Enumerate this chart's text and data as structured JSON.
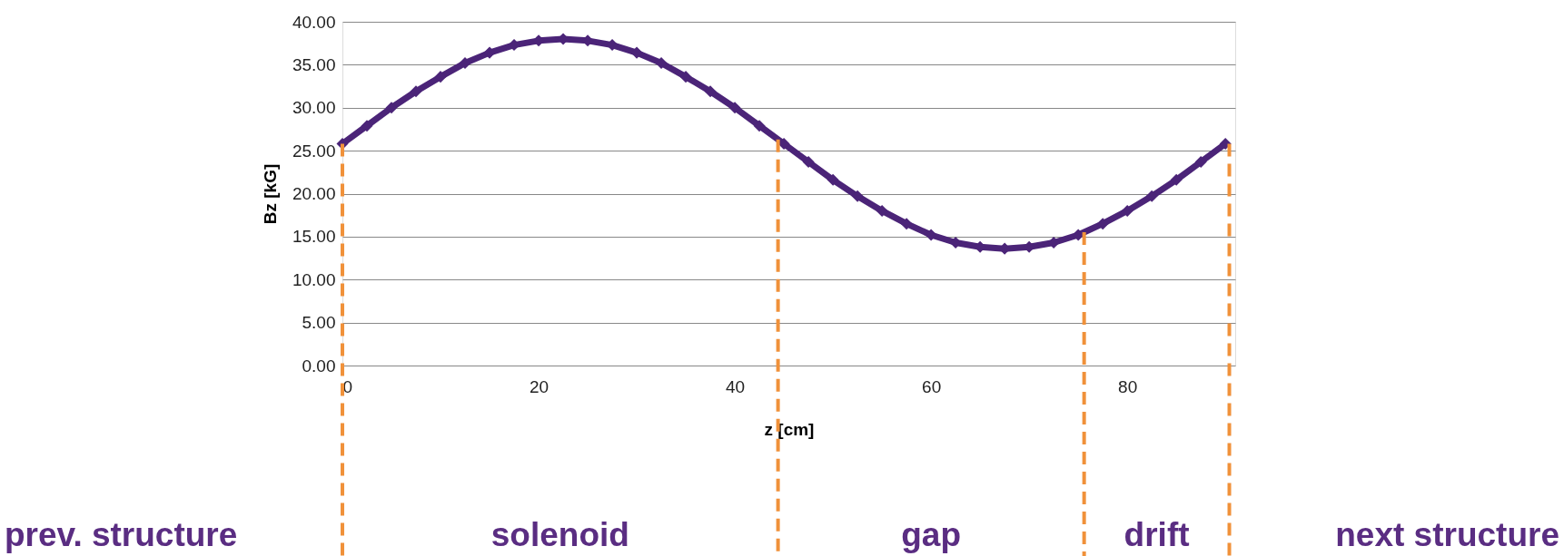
{
  "chart_data": {
    "type": "line",
    "xlabel": "z [cm]",
    "ylabel": "Bz [kG]",
    "x": [
      0,
      2.5,
      5,
      7.5,
      10,
      12.5,
      15,
      17.5,
      20,
      22.5,
      25,
      27.5,
      30,
      32.5,
      35,
      37.5,
      40,
      42.5,
      45,
      47.5,
      50,
      52.5,
      55,
      57.5,
      60,
      62.5,
      65,
      67.5,
      70,
      72.5,
      75,
      77.5,
      80,
      82.5,
      85,
      87.5,
      90
    ],
    "series": [
      {
        "color": "#4b2478",
        "values": [
          25.8,
          27.9,
          30.0,
          31.9,
          33.6,
          35.2,
          36.4,
          37.3,
          37.8,
          38.0,
          37.8,
          37.3,
          36.4,
          35.2,
          33.6,
          31.9,
          30.0,
          27.9,
          25.8,
          23.7,
          21.6,
          19.7,
          18.0,
          16.5,
          15.2,
          14.3,
          13.8,
          13.6,
          13.8,
          14.3,
          15.2,
          16.5,
          18.0,
          19.7,
          21.6,
          23.7,
          25.8
        ]
      }
    ],
    "marker": "diamond",
    "line_style": "solid",
    "grid": "y",
    "xlim": [
      0,
      91
    ],
    "xticks": [
      0,
      20,
      40,
      60,
      80
    ],
    "ylim": [
      0,
      40
    ],
    "yticks": [
      {
        "value": 0,
        "label": "0.00"
      },
      {
        "value": 5,
        "label": "5.00"
      },
      {
        "value": 10,
        "label": "10.00"
      },
      {
        "value": 15,
        "label": "15.00"
      },
      {
        "value": 20,
        "label": "20.00"
      },
      {
        "value": 25,
        "label": "25.00"
      },
      {
        "value": 30,
        "label": "30.00"
      },
      {
        "value": 35,
        "label": "35.00"
      },
      {
        "value": 40,
        "label": "40.00"
      }
    ],
    "ref_lines": [
      {
        "axis": "x",
        "value": 0,
        "color": "#f0913a",
        "line_style": "dashed"
      },
      {
        "axis": "x",
        "value": 44.4,
        "color": "#f0913a",
        "line_style": "dashed"
      },
      {
        "axis": "x",
        "value": 75.6,
        "color": "#f0913a",
        "line_style": "dashed"
      },
      {
        "axis": "x",
        "value": 90.4,
        "color": "#f0913a",
        "line_style": "dashed"
      }
    ],
    "annotations": [
      "prev. structure",
      "solenoid",
      "gap",
      "drift",
      "next structure"
    ]
  }
}
